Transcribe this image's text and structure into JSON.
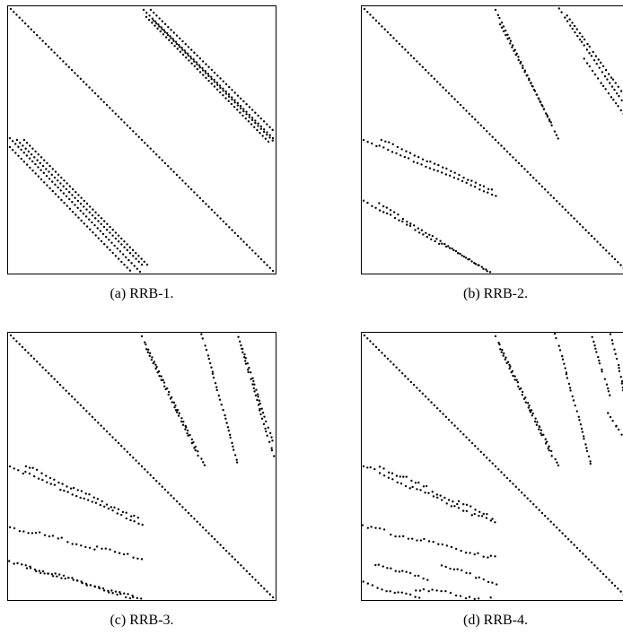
{
  "figure": {
    "panels": [
      {
        "id": "a",
        "caption": "(a) RRB-1."
      },
      {
        "id": "b",
        "caption": "(b) RRB-2."
      },
      {
        "id": "c",
        "caption": "(c) RRB-3."
      },
      {
        "id": "d",
        "caption": "(d) RRB-4."
      }
    ]
  }
}
